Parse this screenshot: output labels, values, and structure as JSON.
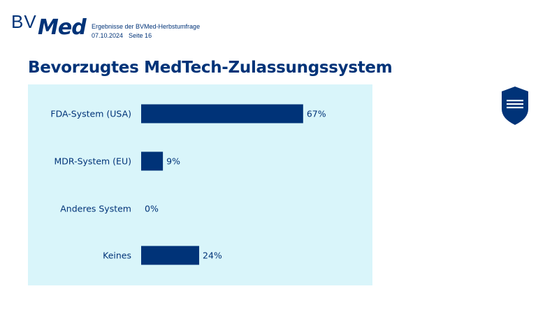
{
  "header": {
    "logo_text": "BVMed",
    "logo_bv": "BV",
    "logo_med": "Med",
    "survey_title": "Ergebnisse der BVMed-Herbstumfrage",
    "date": "07.10.2024",
    "page": "Seite 16"
  },
  "slide": {
    "title": "Bevorzugtes MedTech-Zulassungssystem"
  },
  "decor": {
    "shield_icon": "shield-icon"
  },
  "colors": {
    "brand": "#003378",
    "panel_bg": "#d9f5fa"
  },
  "chart_data": {
    "type": "bar",
    "orientation": "horizontal",
    "categories": [
      "FDA-System (USA)",
      "MDR-System (EU)",
      "Anderes System",
      "Keines"
    ],
    "values": [
      67,
      9,
      0,
      24
    ],
    "value_labels": [
      "67%",
      "9%",
      "0%",
      "24%"
    ],
    "unit": "%",
    "xlim": [
      0,
      100
    ],
    "grid": false,
    "legend": "none",
    "title": "",
    "xlabel": "",
    "ylabel": ""
  }
}
